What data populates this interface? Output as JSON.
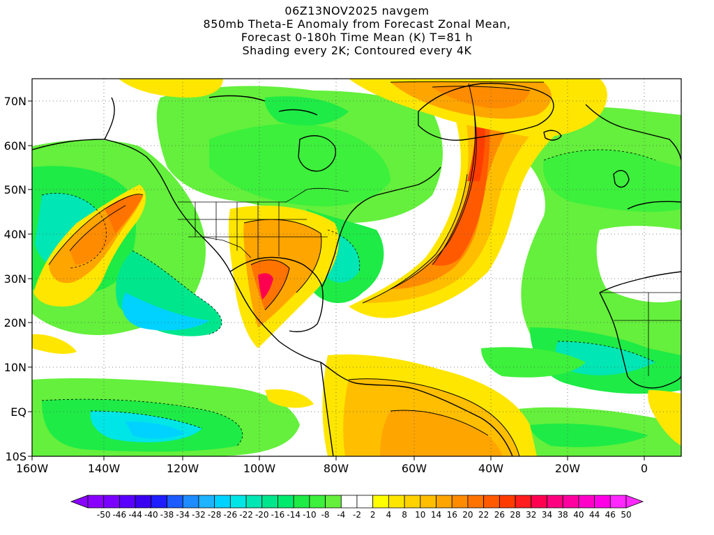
{
  "title": {
    "line1": "06Z13NOV2025 navgem",
    "line2": "850mb Theta-E Anomaly from Forecast Zonal Mean,",
    "line3": "Forecast 0-180h Time Mean (K) T=81 h",
    "line4": "Shading every 2K; Contoured every 4K"
  },
  "axes": {
    "lat_ticks": [
      "70N",
      "60N",
      "50N",
      "40N",
      "30N",
      "20N",
      "10N",
      "EQ",
      "10S"
    ],
    "lon_ticks": [
      "160W",
      "140W",
      "120W",
      "100W",
      "80W",
      "60W",
      "40W",
      "20W",
      "0"
    ]
  },
  "colorbar": {
    "labels": [
      "-50",
      "-46",
      "-44",
      "-40",
      "-38",
      "-34",
      "-32",
      "-28",
      "-26",
      "-22",
      "-20",
      "-16",
      "-14",
      "-10",
      "-8",
      "-4",
      "-2",
      "2",
      "4",
      "8",
      "10",
      "14",
      "16",
      "20",
      "22",
      "26",
      "28",
      "32",
      "34",
      "38",
      "40",
      "44",
      "46",
      "50"
    ],
    "colors": [
      "#8a00ff",
      "#7a00ff",
      "#5a00ff",
      "#3a00f0",
      "#1e1eff",
      "#1c5cff",
      "#1e8cff",
      "#1eb4ff",
      "#00d2ff",
      "#00e6e6",
      "#00e6b4",
      "#00e68c",
      "#00eb6e",
      "#1eeb46",
      "#3cf03c",
      "#64f03c",
      "#ffffff",
      "#ffffff",
      "#ffff00",
      "#ffe600",
      "#ffd200",
      "#ffbe00",
      "#ffa500",
      "#ff8c00",
      "#ff7300",
      "#ff5a00",
      "#ff3c00",
      "#ff1e1e",
      "#ff0050",
      "#ff0080",
      "#ff00a0",
      "#ff00c8",
      "#ff00e6",
      "#ff28ff"
    ]
  },
  "map": {
    "lat_range": [
      "10S",
      "75N"
    ],
    "lon_range": [
      "160W",
      "10E"
    ],
    "features": [
      "coastlines",
      "country-borders",
      "us-state-borders",
      "theta-e-shading",
      "contours"
    ]
  }
}
